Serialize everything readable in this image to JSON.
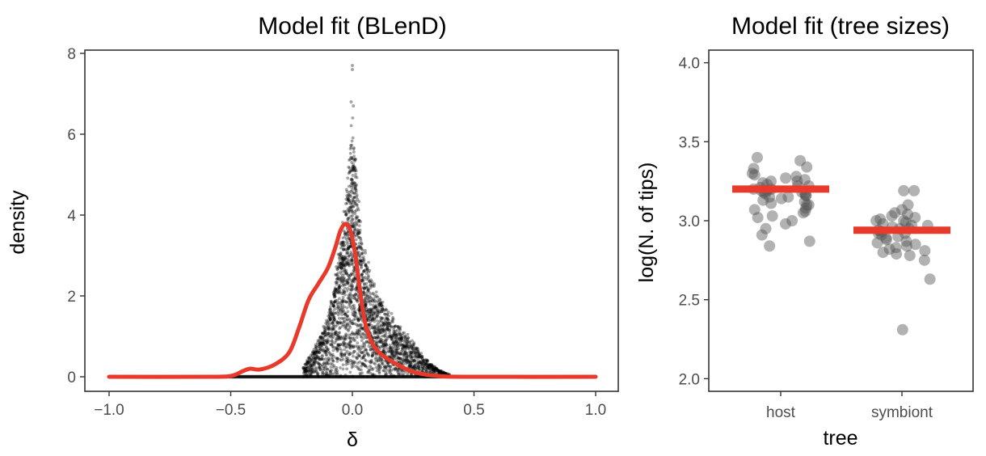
{
  "chart_data": [
    {
      "type": "scatter",
      "title": "Model fit (BLenD)",
      "xlabel": "δ",
      "ylabel": "density",
      "xlim": [
        -1.0,
        1.0
      ],
      "ylim": [
        0,
        8
      ],
      "xticks": [
        "−1.0",
        "−0.5",
        "0.0",
        "0.5",
        "1.0"
      ],
      "xtick_values": [
        -1.0,
        -0.5,
        0.0,
        0.5,
        1.0
      ],
      "yticks": [
        "0",
        "2",
        "4",
        "6",
        "8"
      ],
      "ytick_values": [
        0,
        2,
        4,
        6,
        8
      ],
      "grid": false,
      "point_color": "#000000",
      "series": [
        {
          "kind": "points",
          "description_points": "simulated densities, many replicates",
          "x": [
            -0.2,
            -0.15,
            -0.1,
            -0.07,
            -0.05,
            -0.03,
            -0.02,
            -0.01,
            0.0,
            0.01,
            0.02,
            0.03,
            0.05,
            0.07,
            0.1,
            0.15,
            0.2,
            0.25,
            0.3,
            0.35,
            0.4
          ],
          "y": [
            0.3,
            0.8,
            1.6,
            2.6,
            3.4,
            4.4,
            5.2,
            5.8,
            6.8,
            6.0,
            5.0,
            4.2,
            3.2,
            2.7,
            2.2,
            1.7,
            1.3,
            0.9,
            0.5,
            0.2,
            0.05
          ]
        },
        {
          "kind": "line",
          "color": "#e8392b",
          "x": [
            -1.0,
            -0.6,
            -0.5,
            -0.45,
            -0.42,
            -0.38,
            -0.32,
            -0.26,
            -0.22,
            -0.18,
            -0.14,
            -0.1,
            -0.07,
            -0.05,
            -0.03,
            -0.01,
            0.01,
            0.03,
            0.05,
            0.08,
            0.12,
            0.18,
            0.25,
            0.35,
            0.5,
            1.0
          ],
          "y": [
            0,
            0,
            0.02,
            0.14,
            0.2,
            0.18,
            0.3,
            0.6,
            1.2,
            1.9,
            2.3,
            2.7,
            3.2,
            3.6,
            3.78,
            3.65,
            3.1,
            2.2,
            1.4,
            0.85,
            0.55,
            0.32,
            0.12,
            0.02,
            0,
            0
          ]
        }
      ]
    },
    {
      "type": "scatter",
      "title": "Model fit (tree sizes)",
      "xlabel": "tree",
      "ylabel": "log(N. of tips)",
      "categories": [
        "host",
        "symbiont"
      ],
      "ylim": [
        1.92,
        4.08
      ],
      "yticks": [
        "2.0",
        "2.5",
        "3.0",
        "3.5",
        "4.0"
      ],
      "ytick_values": [
        2.0,
        2.5,
        3.0,
        3.5,
        4.0
      ],
      "grid": false,
      "series": [
        {
          "name": "host",
          "values": [
            3.4,
            3.38,
            3.34,
            3.33,
            3.3,
            3.29,
            3.28,
            3.27,
            3.26,
            3.25,
            3.25,
            3.24,
            3.23,
            3.22,
            3.22,
            3.21,
            3.2,
            3.2,
            3.19,
            3.19,
            3.18,
            3.18,
            3.17,
            3.17,
            3.16,
            3.16,
            3.15,
            3.15,
            3.14,
            3.13,
            3.12,
            3.11,
            3.1,
            3.1,
            3.08,
            3.07,
            3.06,
            3.05,
            3.03,
            3.02,
            3.0,
            2.98,
            2.95,
            2.91,
            2.87,
            2.84
          ],
          "fitted": 3.2
        },
        {
          "name": "symbiont",
          "values": [
            3.19,
            3.19,
            3.1,
            3.07,
            3.05,
            3.04,
            3.03,
            3.02,
            3.01,
            3.0,
            3.0,
            2.99,
            2.98,
            2.97,
            2.97,
            2.96,
            2.95,
            2.95,
            2.94,
            2.93,
            2.92,
            2.92,
            2.91,
            2.9,
            2.89,
            2.88,
            2.87,
            2.86,
            2.85,
            2.84,
            2.83,
            2.82,
            2.81,
            2.8,
            2.79,
            2.78,
            2.75,
            2.63,
            2.31
          ],
          "fitted": 2.94
        }
      ],
      "point_color": "#555555",
      "fit_color": "#e8392b"
    }
  ]
}
